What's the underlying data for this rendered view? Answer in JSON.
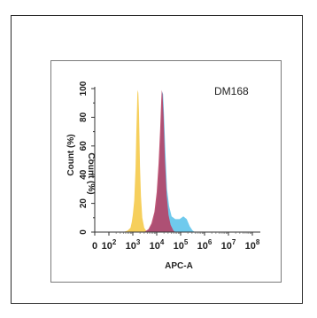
{
  "chart_data": {
    "type": "area",
    "title": "DM168",
    "xlabel": "APC-A",
    "ylabel": "Count (%)",
    "ylabel_mirrored": "Count (%)",
    "x_scale": "log",
    "x_ticks": [
      {
        "label": "0",
        "value": 0
      },
      {
        "base": "10",
        "exp": "2",
        "value": 100
      },
      {
        "base": "10",
        "exp": "3",
        "value": 1000
      },
      {
        "base": "10",
        "exp": "4",
        "value": 10000
      },
      {
        "base": "10",
        "exp": "5",
        "value": 100000
      },
      {
        "base": "10",
        "exp": "6",
        "value": 1000000
      },
      {
        "base": "10",
        "exp": "7",
        "value": 10000000
      },
      {
        "base": "10",
        "exp": "8",
        "value": 100000000
      }
    ],
    "y_ticks": [
      "0",
      "20",
      "40",
      "60",
      "80",
      "100"
    ],
    "y_tick_values": [
      0,
      20,
      40,
      60,
      80,
      100
    ],
    "ylim": [
      0,
      100
    ],
    "series": [
      {
        "color": "#f6cf5c",
        "points": [
          [
            400,
            0
          ],
          [
            600,
            1
          ],
          [
            800,
            3
          ],
          [
            900,
            7
          ],
          [
            1000,
            12
          ],
          [
            1150,
            22
          ],
          [
            1300,
            45
          ],
          [
            1400,
            68
          ],
          [
            1500,
            88
          ],
          [
            1550,
            96
          ],
          [
            1600,
            99
          ],
          [
            1700,
            97
          ],
          [
            1800,
            85
          ],
          [
            1900,
            66
          ],
          [
            2000,
            46
          ],
          [
            2200,
            25
          ],
          [
            2500,
            10
          ],
          [
            3000,
            3
          ],
          [
            3600,
            1
          ],
          [
            4500,
            0
          ]
        ]
      },
      {
        "color": "#67c7ec",
        "points": [
          [
            3000,
            0
          ],
          [
            5000,
            2
          ],
          [
            7000,
            7
          ],
          [
            10000,
            20
          ],
          [
            13000,
            45
          ],
          [
            15000,
            70
          ],
          [
            16500,
            90
          ],
          [
            17200,
            98
          ],
          [
            18500,
            96
          ],
          [
            20000,
            84
          ],
          [
            23000,
            56
          ],
          [
            27000,
            30
          ],
          [
            33000,
            18
          ],
          [
            42000,
            11
          ],
          [
            60000,
            9
          ],
          [
            90000,
            9
          ],
          [
            130000,
            11
          ],
          [
            180000,
            9
          ],
          [
            240000,
            4
          ],
          [
            320000,
            1
          ],
          [
            400000,
            0
          ]
        ]
      },
      {
        "color": "#b73f63",
        "points": [
          [
            3000,
            0
          ],
          [
            4500,
            2
          ],
          [
            6000,
            6
          ],
          [
            8000,
            14
          ],
          [
            10000,
            28
          ],
          [
            12000,
            48
          ],
          [
            14000,
            72
          ],
          [
            15500,
            92
          ],
          [
            16200,
            99
          ],
          [
            17500,
            96
          ],
          [
            19500,
            80
          ],
          [
            22000,
            52
          ],
          [
            26000,
            26
          ],
          [
            31000,
            12
          ],
          [
            38000,
            5
          ],
          [
            50000,
            1
          ],
          [
            60000,
            0
          ]
        ]
      }
    ]
  }
}
